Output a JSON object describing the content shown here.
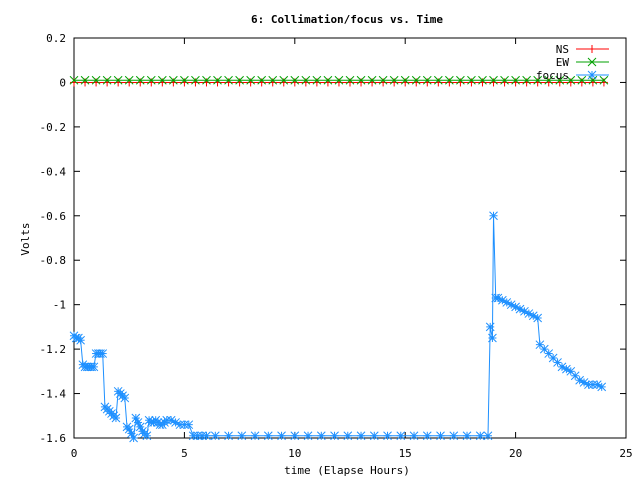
{
  "chart_data": {
    "type": "line",
    "title": "6: Collimation/focus vs. Time",
    "xlabel": "time (Elapse Hours)",
    "ylabel": "Volts",
    "xlim": [
      0,
      25
    ],
    "ylim": [
      -1.6,
      0.2
    ],
    "xticks": [
      0,
      5,
      10,
      15,
      20,
      25
    ],
    "xtick_labels": [
      "0",
      "5",
      "10",
      "15",
      "20",
      "25"
    ],
    "yticks": [
      0.2,
      0,
      -0.2,
      -0.4,
      -0.6,
      -0.8,
      -1,
      -1.2,
      -1.4,
      -1.6
    ],
    "ytick_labels": [
      "0.2",
      "0",
      "-0.2",
      "-0.4",
      "-0.6",
      "-0.8",
      "-1",
      "-1.2",
      "-1.4",
      "-1.6"
    ],
    "grid": false,
    "legend_position": "top-right",
    "series": [
      {
        "name": "NS",
        "color": "#ff0000",
        "marker": "plus",
        "x": [
          0,
          0.5,
          1,
          1.5,
          2,
          2.5,
          3,
          3.5,
          4,
          4.5,
          5,
          5.5,
          6,
          6.5,
          7,
          7.5,
          8,
          8.5,
          9,
          9.5,
          10,
          10.5,
          11,
          11.5,
          12,
          12.5,
          13,
          13.5,
          14,
          14.5,
          15,
          15.5,
          16,
          16.5,
          17,
          17.5,
          18,
          18.5,
          19,
          19.5,
          20,
          20.5,
          21,
          21.5,
          22,
          22.5,
          23,
          23.5,
          24
        ],
        "y": [
          0,
          0,
          0,
          0,
          0,
          0,
          0,
          0,
          0,
          0,
          0,
          0,
          0,
          0,
          0,
          0,
          0,
          0,
          0,
          0,
          0,
          0,
          0,
          0,
          0,
          0,
          0,
          0,
          0,
          0,
          0,
          0,
          0,
          0,
          0,
          0,
          0,
          0,
          0,
          0,
          0,
          0,
          0,
          0,
          0,
          0,
          0,
          0,
          0
        ]
      },
      {
        "name": "EW",
        "color": "#00a000",
        "marker": "cross",
        "x": [
          0,
          0.5,
          1,
          1.5,
          2,
          2.5,
          3,
          3.5,
          4,
          4.5,
          5,
          5.5,
          6,
          6.5,
          7,
          7.5,
          8,
          8.5,
          9,
          9.5,
          10,
          10.5,
          11,
          11.5,
          12,
          12.5,
          13,
          13.5,
          14,
          14.5,
          15,
          15.5,
          16,
          16.5,
          17,
          17.5,
          18,
          18.5,
          19,
          19.5,
          20,
          20.5,
          21,
          21.5,
          22,
          22.5,
          23,
          23.5,
          24
        ],
        "y": [
          0.01,
          0.01,
          0.01,
          0.01,
          0.01,
          0.01,
          0.01,
          0.01,
          0.01,
          0.01,
          0.01,
          0.01,
          0.01,
          0.01,
          0.01,
          0.01,
          0.01,
          0.01,
          0.01,
          0.01,
          0.01,
          0.01,
          0.01,
          0.01,
          0.01,
          0.01,
          0.01,
          0.01,
          0.01,
          0.01,
          0.01,
          0.01,
          0.01,
          0.01,
          0.01,
          0.01,
          0.01,
          0.01,
          0.01,
          0.01,
          0.01,
          0.01,
          0.01,
          0.01,
          0.01,
          0.01,
          0.01,
          0.01,
          0.01
        ]
      },
      {
        "name": "focus",
        "color": "#1e90ff",
        "marker": "star",
        "x": [
          0,
          0.1,
          0.2,
          0.3,
          0.4,
          0.5,
          0.6,
          0.7,
          0.8,
          0.9,
          1.0,
          1.1,
          1.2,
          1.3,
          1.4,
          1.5,
          1.6,
          1.7,
          1.8,
          1.9,
          2.0,
          2.1,
          2.2,
          2.3,
          2.4,
          2.5,
          2.6,
          2.7,
          2.8,
          2.9,
          3.0,
          3.1,
          3.2,
          3.3,
          3.4,
          3.5,
          3.6,
          3.7,
          3.8,
          3.9,
          4.0,
          4.1,
          4.2,
          4.4,
          4.6,
          4.8,
          5.0,
          5.2,
          5.4,
          5.6,
          5.8,
          6.0,
          6.4,
          7.0,
          7.6,
          8.2,
          8.8,
          9.4,
          10.0,
          10.6,
          11.2,
          11.8,
          12.4,
          13.0,
          13.6,
          14.2,
          14.8,
          15.4,
          16.0,
          16.6,
          17.2,
          17.8,
          18.4,
          18.75,
          18.85,
          18.95,
          19.0,
          19.1,
          19.2,
          19.4,
          19.6,
          19.8,
          20.0,
          20.2,
          20.4,
          20.6,
          20.8,
          21.0,
          21.1,
          21.3,
          21.5,
          21.7,
          21.9,
          22.1,
          22.3,
          22.5,
          22.7,
          22.9,
          23.1,
          23.3,
          23.5,
          23.7,
          23.9
        ],
        "y": [
          -1.14,
          -1.15,
          -1.15,
          -1.16,
          -1.27,
          -1.28,
          -1.28,
          -1.28,
          -1.28,
          -1.28,
          -1.22,
          -1.22,
          -1.22,
          -1.22,
          -1.46,
          -1.47,
          -1.48,
          -1.49,
          -1.5,
          -1.51,
          -1.39,
          -1.4,
          -1.41,
          -1.42,
          -1.55,
          -1.56,
          -1.58,
          -1.6,
          -1.51,
          -1.53,
          -1.55,
          -1.57,
          -1.58,
          -1.59,
          -1.52,
          -1.53,
          -1.53,
          -1.52,
          -1.53,
          -1.54,
          -1.54,
          -1.53,
          -1.52,
          -1.52,
          -1.53,
          -1.54,
          -1.54,
          -1.54,
          -1.59,
          -1.59,
          -1.59,
          -1.59,
          -1.59,
          -1.59,
          -1.59,
          -1.59,
          -1.59,
          -1.59,
          -1.59,
          -1.59,
          -1.59,
          -1.59,
          -1.59,
          -1.59,
          -1.59,
          -1.59,
          -1.59,
          -1.59,
          -1.59,
          -1.59,
          -1.59,
          -1.59,
          -1.59,
          -1.59,
          -1.1,
          -1.15,
          -0.6,
          -0.97,
          -0.97,
          -0.98,
          -0.99,
          -1.0,
          -1.01,
          -1.02,
          -1.03,
          -1.04,
          -1.05,
          -1.06,
          -1.18,
          -1.2,
          -1.22,
          -1.24,
          -1.26,
          -1.28,
          -1.29,
          -1.3,
          -1.32,
          -1.34,
          -1.35,
          -1.36,
          -1.36,
          -1.36,
          -1.37
        ]
      }
    ]
  }
}
